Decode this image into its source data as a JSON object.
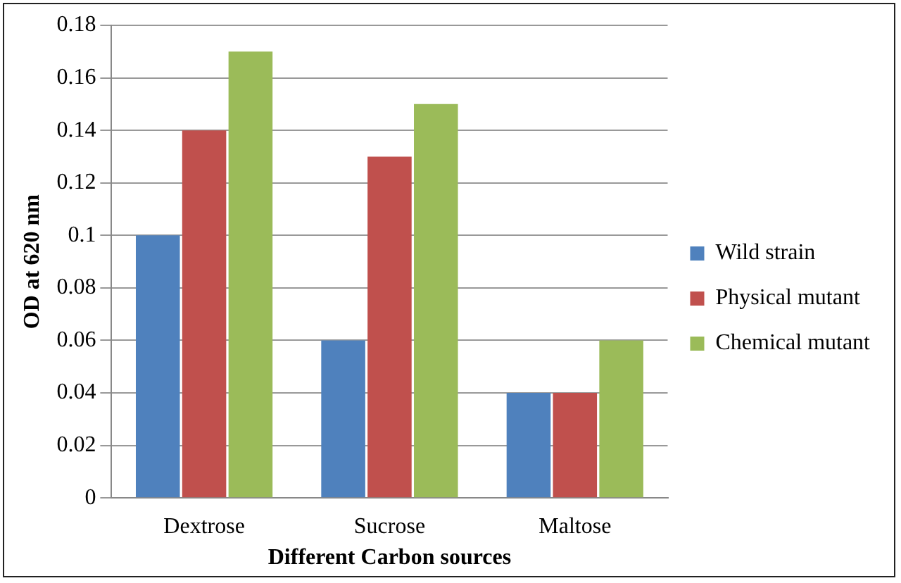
{
  "chart_data": {
    "type": "bar",
    "xlabel": "Different Carbon sources",
    "ylabel": "OD at 620 nm",
    "categories": [
      "Dextrose",
      "Sucrose",
      "Maltose"
    ],
    "series": [
      {
        "name": "Wild strain",
        "color": "#4f81bd",
        "values": [
          0.1,
          0.06,
          0.04
        ]
      },
      {
        "name": "Physical mutant",
        "color": "#c0504d",
        "values": [
          0.14,
          0.13,
          0.04
        ]
      },
      {
        "name": "Chemical mutant",
        "color": "#9bbb59",
        "values": [
          0.17,
          0.15,
          0.06
        ]
      }
    ],
    "ylim": [
      0,
      0.18
    ],
    "yticks": [
      0,
      0.02,
      0.04,
      0.06,
      0.08,
      0.1,
      0.12,
      0.14,
      0.16,
      0.18
    ],
    "grid": "y",
    "legend": "right"
  }
}
